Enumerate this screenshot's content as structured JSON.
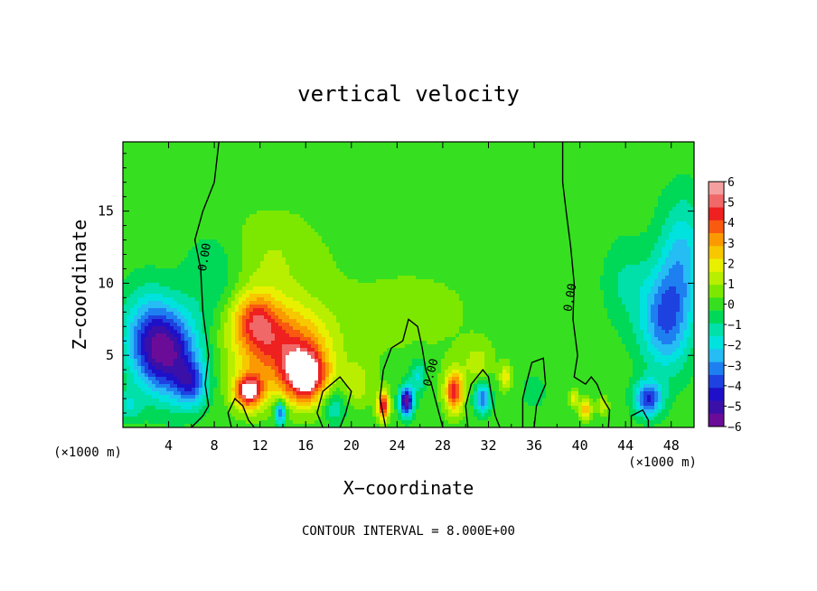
{
  "chart_data": {
    "type": "heatmap",
    "title": "vertical velocity",
    "xlabel": "X−coordinate",
    "ylabel": "Z−coordinate",
    "x_unit_left": "(×1000 m)",
    "x_unit_right": "(×1000 m)",
    "xlim": [
      0,
      50
    ],
    "ylim": [
      0,
      19.8
    ],
    "x_ticks": [
      4,
      8,
      12,
      16,
      20,
      24,
      28,
      32,
      36,
      40,
      44,
      48
    ],
    "y_ticks": [
      5,
      10,
      15
    ],
    "colorbar": {
      "labels": [
        "6",
        "5",
        "4",
        "3",
        "2",
        "1",
        "0",
        "−1",
        "−2",
        "−3",
        "−4",
        "−5",
        "−6"
      ],
      "range": [
        -6,
        6
      ],
      "colors": [
        "#f4a0a0",
        "#f06868",
        "#ee2020",
        "#f85a10",
        "#fa9a00",
        "#f7c800",
        "#e8f000",
        "#b8ef00",
        "#7ce800",
        "#36e020",
        "#00d858",
        "#00e0a8",
        "#00e2de",
        "#26bcf4",
        "#1e80f0",
        "#1e42e0",
        "#1e10c8",
        "#3a10a8",
        "#6a0c98"
      ]
    },
    "contour_labels": [
      "0.00",
      "0.00",
      "0.00"
    ],
    "footnote": "CONTOUR INTERVAL = 8.000E+00",
    "features": [
      {
        "x": 4.0,
        "z": 5.2,
        "w": -5.0,
        "sx": 2.6,
        "sz": 3.0
      },
      {
        "x": 2.0,
        "z": 6.5,
        "w": -2.2,
        "sx": 2.2,
        "sz": 3.2
      },
      {
        "x": 6.0,
        "z": 3.0,
        "w": -3.0,
        "sx": 1.4,
        "sz": 1.6
      },
      {
        "x": 8.0,
        "z": 10.5,
        "w": -1.0,
        "sx": 2.5,
        "sz": 3.0
      },
      {
        "x": 14.0,
        "z": 5.5,
        "w": 4.0,
        "sx": 4.0,
        "sz": 3.0
      },
      {
        "x": 11.5,
        "z": 7.5,
        "w": 3.0,
        "sx": 2.0,
        "sz": 2.0
      },
      {
        "x": 16.0,
        "z": 3.5,
        "w": 5.2,
        "sx": 1.8,
        "sz": 1.8
      },
      {
        "x": 11.0,
        "z": 2.5,
        "w": 5.2,
        "sx": 1.3,
        "sz": 1.2
      },
      {
        "x": 13.0,
        "z": 12.0,
        "w": 0.9,
        "sx": 4.0,
        "sz": 3.0
      },
      {
        "x": 13.8,
        "z": 1.0,
        "w": -4.0,
        "sx": 0.5,
        "sz": 0.8
      },
      {
        "x": 18.5,
        "z": 1.5,
        "w": -1.8,
        "sx": 1.0,
        "sz": 1.2
      },
      {
        "x": 22.8,
        "z": 1.5,
        "w": 5.0,
        "sx": 0.5,
        "sz": 0.9
      },
      {
        "x": 20.5,
        "z": 3.0,
        "w": 1.2,
        "sx": 1.2,
        "sz": 1.5
      },
      {
        "x": 24.8,
        "z": 1.8,
        "w": -6.0,
        "sx": 0.6,
        "sz": 1.0
      },
      {
        "x": 25.8,
        "z": 3.5,
        "w": -1.8,
        "sx": 0.8,
        "sz": 1.2
      },
      {
        "x": 29.0,
        "z": 2.5,
        "w": 4.5,
        "sx": 0.8,
        "sz": 1.4
      },
      {
        "x": 31.5,
        "z": 2.0,
        "w": -3.5,
        "sx": 0.7,
        "sz": 1.0
      },
      {
        "x": 33.5,
        "z": 3.5,
        "w": 2.0,
        "sx": 0.5,
        "sz": 0.8
      },
      {
        "x": 31.0,
        "z": 4.5,
        "w": 1.2,
        "sx": 1.2,
        "sz": 1.2
      },
      {
        "x": 36.0,
        "z": 2.5,
        "w": -1.0,
        "sx": 1.0,
        "sz": 1.0
      },
      {
        "x": 40.5,
        "z": 1.2,
        "w": 2.8,
        "sx": 0.5,
        "sz": 0.7
      },
      {
        "x": 39.5,
        "z": 2.0,
        "w": 2.0,
        "sx": 0.4,
        "sz": 0.6
      },
      {
        "x": 42.0,
        "z": 1.5,
        "w": 1.5,
        "sx": 0.5,
        "sz": 0.6
      },
      {
        "x": 47.5,
        "z": 7.5,
        "w": -3.5,
        "sx": 2.2,
        "sz": 3.5
      },
      {
        "x": 46.0,
        "z": 2.0,
        "w": -4.0,
        "sx": 1.2,
        "sz": 1.2
      },
      {
        "x": 49.0,
        "z": 12.0,
        "w": -2.2,
        "sx": 2.0,
        "sz": 4.0
      },
      {
        "x": 44.0,
        "z": 10.0,
        "w": -1.0,
        "sx": 2.0,
        "sz": 3.0
      },
      {
        "x": 0.5,
        "z": 1.5,
        "w": -1.5,
        "sx": 1.0,
        "sz": 1.0
      },
      {
        "x": 25.0,
        "z": 8.0,
        "w": 0.4,
        "sx": 10.0,
        "sz": 5.0
      }
    ],
    "contours": [
      [
        [
          6.0,
          0.0
        ],
        [
          7.0,
          0.8
        ],
        [
          7.5,
          1.5
        ],
        [
          7.2,
          3.0
        ],
        [
          7.5,
          5.0
        ],
        [
          7.0,
          8.0
        ],
        [
          6.8,
          11.0
        ],
        [
          6.3,
          13.0
        ],
        [
          7.0,
          15.0
        ],
        [
          8.0,
          17.0
        ],
        [
          8.4,
          19.8
        ]
      ],
      [
        [
          38.5,
          19.8
        ],
        [
          38.5,
          17.0
        ],
        [
          38.8,
          15.0
        ],
        [
          39.2,
          12.5
        ],
        [
          39.5,
          10.0
        ],
        [
          39.4,
          7.5
        ],
        [
          39.8,
          5.0
        ],
        [
          39.5,
          3.5
        ],
        [
          40.5,
          3.0
        ],
        [
          41.0,
          3.5
        ],
        [
          41.5,
          3.0
        ],
        [
          42.0,
          2.0
        ],
        [
          42.6,
          1.2
        ],
        [
          42.5,
          0.0
        ]
      ],
      [
        [
          23.0,
          0.0
        ],
        [
          22.5,
          2.0
        ],
        [
          22.8,
          4.0
        ],
        [
          23.5,
          5.5
        ],
        [
          24.5,
          6.0
        ],
        [
          25.0,
          7.5
        ],
        [
          25.8,
          7.0
        ],
        [
          26.2,
          5.5
        ],
        [
          26.5,
          4.0
        ],
        [
          27.0,
          3.0
        ],
        [
          27.5,
          1.5
        ],
        [
          28.0,
          0.0
        ]
      ],
      [
        [
          30.2,
          0.0
        ],
        [
          30.0,
          1.5
        ],
        [
          30.5,
          3.0
        ],
        [
          31.5,
          4.0
        ],
        [
          32.0,
          3.5
        ],
        [
          32.3,
          2.0
        ],
        [
          32.6,
          0.8
        ],
        [
          33.0,
          0.0
        ]
      ],
      [
        [
          35.0,
          0.0
        ],
        [
          35.0,
          2.0
        ],
        [
          35.3,
          3.0
        ],
        [
          35.8,
          4.5
        ],
        [
          36.8,
          4.8
        ],
        [
          37.0,
          3.0
        ],
        [
          36.2,
          1.5
        ],
        [
          36.0,
          0.0
        ]
      ],
      [
        [
          9.5,
          0.0
        ],
        [
          9.2,
          1.0
        ],
        [
          9.8,
          2.0
        ],
        [
          10.5,
          1.5
        ],
        [
          11.0,
          0.5
        ],
        [
          11.5,
          0.0
        ]
      ],
      [
        [
          17.5,
          0.0
        ],
        [
          17.0,
          1.0
        ],
        [
          17.5,
          2.5
        ],
        [
          19.0,
          3.5
        ],
        [
          20.0,
          2.5
        ],
        [
          19.5,
          1.0
        ],
        [
          19.0,
          0.0
        ]
      ],
      [
        [
          44.5,
          0.0
        ],
        [
          44.5,
          0.8
        ],
        [
          45.5,
          1.2
        ],
        [
          46.0,
          0.5
        ],
        [
          46.0,
          0.0
        ]
      ]
    ]
  }
}
